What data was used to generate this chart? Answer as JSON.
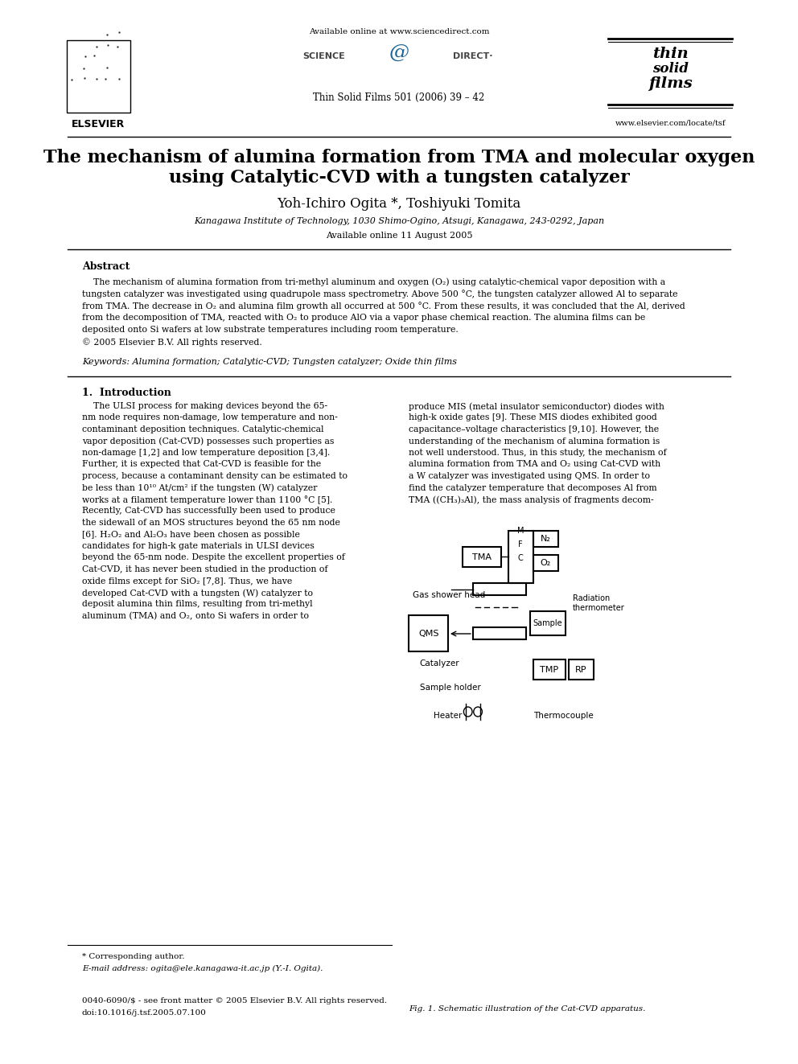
{
  "bg_color": "#ffffff",
  "title_line1": "The mechanism of alumina formation from TMA and molecular oxygen",
  "title_line2": "using Catalytic-CVD with a tungsten catalyzer",
  "authors": "Yoh-Ichiro Ogita *, Toshiyuki Tomita",
  "affiliation": "Kanagawa Institute of Technology, 1030 Shimo-Ogino, Atsugi, Kanagawa, 243-0292, Japan",
  "available_online_date": "Available online 11 August 2005",
  "header_url": "Available online at www.sciencedirect.com",
  "journal_info": "Thin Solid Films 501 (2006) 39 – 42",
  "elsevier_text": "ELSEVIER",
  "website": "www.elsevier.com/locate/tsf",
  "abstract_title": "Abstract",
  "abstract_text": "    The mechanism of alumina formation from tri-methyl aluminum and oxygen (O₂) using catalytic-chemical vapor deposition with a tungsten catalyzer was investigated using quadrupole mass spectrometry. Above 500 °C, the tungsten catalyzer allowed Al to separate from TMA. The decrease in O₂ and alumina film growth all occurred at 500 °C. From these results, it was concluded that the Al, derived from the decomposition of TMA, reacted with O₂ to produce AlO via a vapor phase chemical reaction. The alumina films can be deposited onto Si wafers at low substrate temperatures including room temperature.\n© 2005 Elsevier B.V. All rights reserved.",
  "keywords": "Keywords: Alumina formation; Catalytic-CVD; Tungsten catalyzer; Oxide thin films",
  "section1_title": "1.  Introduction",
  "col1_text": "    The ULSI process for making devices beyond the 65-nm node requires non-damage, low temperature and non-contaminant deposition techniques. Catalytic-chemical vapor deposition (Cat-CVD) possesses such properties as non-damage [1,2] and low temperature deposition [3,4]. Further, it is expected that Cat-CVD is feasible for the process, because a contaminant density can be estimated to be less than 10¹⁰ At/cm² if the tungsten (W) catalyzer works at a filament temperature lower than 1100 °C [5]. Recently, Cat-CVD has successfully been used to produce the sidewall of an MOS structures beyond the 65 nm node [6]. H₂O₂ and Al₂O₃ have been chosen as possible candidates for high-k gate materials in ULSI devices beyond the 65-nm node. Despite the excellent properties of Cat-CVD, it has never been studied in the production of oxide films except for SiO₂ [7,8]. Thus, we have developed Cat-CVD with a tungsten (W) catalyzer to deposit alumina thin films, resulting from tri-methyl aluminum (TMA) and O₂, onto Si wafers in order to",
  "col2_text": "produce MIS (metal insulator semiconductor) diodes with high-k oxide gates [9]. These MIS diodes exhibited good capacitance–voltage characteristics [9,10]. However, the understanding of the mechanism of alumina formation is not well understood. Thus, in this study, the mechanism of alumina formation from TMA and O₂ using Cat-CVD with a W catalyzer was investigated using QMS. In order to find the catalyzer temperature that decomposes Al from TMA ((CH₃)₃Al), the mass analysis of fragments decom-",
  "footnote1": "* Corresponding author.",
  "footnote2": "E-mail address: ogita@ele.kanagawa-it.ac.jp (Y.-I. Ogita).",
  "footnote3": "0040-6090/$ - see front matter © 2005 Elsevier B.V. All rights reserved.",
  "footnote4": "doi:10.1016/j.tsf.2005.07.100",
  "fig_caption": "Fig. 1. Schematic illustration of the Cat-CVD apparatus."
}
